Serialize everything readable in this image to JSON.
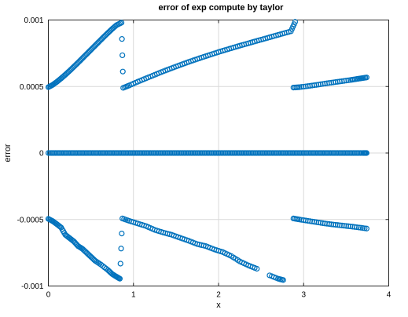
{
  "chart_data": {
    "type": "scatter",
    "title": "error of exp compute by taylor",
    "xlabel": "x",
    "ylabel": "error",
    "xlim": [
      0,
      4
    ],
    "ylim": [
      -0.001,
      0.001
    ],
    "xticks": [
      0,
      1,
      2,
      3,
      4
    ],
    "xtick_labels": [
      "0",
      "1",
      "2",
      "3",
      "4"
    ],
    "yticks": [
      -0.001,
      -0.0005,
      0,
      0.0005,
      0.001
    ],
    "ytick_labels": [
      "-0.001",
      "-0.0005",
      "0",
      "0.0005",
      "0.001"
    ],
    "grid": true,
    "marker": "circle-open",
    "color": "#0072bd",
    "series": [
      {
        "values": [
          {
            "x": 0.0,
            "y": 0.0
          },
          {
            "x": 0.1,
            "y": 0.0
          },
          {
            "x": 0.2,
            "y": 0.0
          },
          {
            "x": 0.3,
            "y": 0.0
          },
          {
            "x": 0.4,
            "y": 0.0
          },
          {
            "x": 0.5,
            "y": 0.0
          },
          {
            "x": 0.6,
            "y": 0.0
          },
          {
            "x": 0.7,
            "y": 0.0
          },
          {
            "x": 0.8,
            "y": 0.0
          },
          {
            "x": 0.9,
            "y": 0.0
          },
          {
            "x": 1.0,
            "y": 0.0
          },
          {
            "x": 1.1,
            "y": 0.0
          },
          {
            "x": 1.2,
            "y": 0.0
          },
          {
            "x": 1.3,
            "y": 0.0
          },
          {
            "x": 1.4,
            "y": 0.0
          },
          {
            "x": 1.5,
            "y": 0.0
          },
          {
            "x": 1.6,
            "y": 0.0
          },
          {
            "x": 1.7,
            "y": 0.0
          },
          {
            "x": 1.8,
            "y": 0.0
          },
          {
            "x": 1.9,
            "y": 0.0
          },
          {
            "x": 2.0,
            "y": 0.0
          },
          {
            "x": 2.1,
            "y": 0.0
          },
          {
            "x": 2.2,
            "y": 0.0
          },
          {
            "x": 2.3,
            "y": 0.0
          },
          {
            "x": 2.4,
            "y": 0.0
          },
          {
            "x": 2.5,
            "y": 0.0
          },
          {
            "x": 2.6,
            "y": 0.0
          },
          {
            "x": 2.7,
            "y": 0.0
          },
          {
            "x": 2.8,
            "y": 0.0
          },
          {
            "x": 2.9,
            "y": 0.0
          },
          {
            "x": 3.0,
            "y": 0.0
          },
          {
            "x": 3.1,
            "y": 0.0
          },
          {
            "x": 3.2,
            "y": 0.0
          },
          {
            "x": 3.3,
            "y": 0.0
          },
          {
            "x": 3.4,
            "y": 0.0
          },
          {
            "x": 3.5,
            "y": 0.0
          },
          {
            "x": 3.6,
            "y": 0.0
          },
          {
            "x": 3.7,
            "y": 0.0
          },
          {
            "x": 3.74,
            "y": 0.0
          },
          {
            "x": 0.0,
            "y": 0.000495
          },
          {
            "x": 0.05,
            "y": 0.000512
          },
          {
            "x": 0.1,
            "y": 0.000535
          },
          {
            "x": 0.15,
            "y": 0.000561
          },
          {
            "x": 0.2,
            "y": 0.000589
          },
          {
            "x": 0.25,
            "y": 0.000618
          },
          {
            "x": 0.3,
            "y": 0.000649
          },
          {
            "x": 0.35,
            "y": 0.00068
          },
          {
            "x": 0.4,
            "y": 0.000712
          },
          {
            "x": 0.45,
            "y": 0.000744
          },
          {
            "x": 0.5,
            "y": 0.000776
          },
          {
            "x": 0.55,
            "y": 0.000808
          },
          {
            "x": 0.6,
            "y": 0.00084
          },
          {
            "x": 0.65,
            "y": 0.000872
          },
          {
            "x": 0.7,
            "y": 0.000903
          },
          {
            "x": 0.75,
            "y": 0.000933
          },
          {
            "x": 0.8,
            "y": 0.000961
          },
          {
            "x": 0.86,
            "y": 0.00098
          },
          {
            "x": 0.88,
            "y": 0.00049
          },
          {
            "x": 0.95,
            "y": 0.000508
          },
          {
            "x": 1.05,
            "y": 0.000536
          },
          {
            "x": 1.15,
            "y": 0.000562
          },
          {
            "x": 1.25,
            "y": 0.000588
          },
          {
            "x": 1.35,
            "y": 0.000614
          },
          {
            "x": 1.45,
            "y": 0.000638
          },
          {
            "x": 1.55,
            "y": 0.000662
          },
          {
            "x": 1.65,
            "y": 0.000685
          },
          {
            "x": 1.75,
            "y": 0.000707
          },
          {
            "x": 1.85,
            "y": 0.000728
          },
          {
            "x": 1.95,
            "y": 0.000749
          },
          {
            "x": 2.05,
            "y": 0.000769
          },
          {
            "x": 2.15,
            "y": 0.000788
          },
          {
            "x": 2.25,
            "y": 0.000807
          },
          {
            "x": 2.35,
            "y": 0.000825
          },
          {
            "x": 2.45,
            "y": 0.000843
          },
          {
            "x": 2.55,
            "y": 0.000861
          },
          {
            "x": 2.65,
            "y": 0.000879
          },
          {
            "x": 2.75,
            "y": 0.000897
          },
          {
            "x": 2.85,
            "y": 0.000915
          },
          {
            "x": 2.9,
            "y": 0.000986
          },
          {
            "x": 2.88,
            "y": 0.000492
          },
          {
            "x": 2.95,
            "y": 0.000495
          },
          {
            "x": 3.05,
            "y": 0.000503
          },
          {
            "x": 3.15,
            "y": 0.000512
          },
          {
            "x": 3.25,
            "y": 0.000522
          },
          {
            "x": 3.35,
            "y": 0.000531
          },
          {
            "x": 3.45,
            "y": 0.00054
          },
          {
            "x": 3.55,
            "y": 0.000549
          },
          {
            "x": 3.62,
            "y": 0.000556
          },
          {
            "x": 3.68,
            "y": 0.000562
          },
          {
            "x": 3.74,
            "y": 0.000568
          },
          {
            "x": 0.0,
            "y": -0.000495
          },
          {
            "x": 0.05,
            "y": -0.000512
          },
          {
            "x": 0.1,
            "y": -0.000535
          },
          {
            "x": 0.15,
            "y": -0.00056
          },
          {
            "x": 0.2,
            "y": -0.000615
          },
          {
            "x": 0.25,
            "y": -0.00064
          },
          {
            "x": 0.3,
            "y": -0.000665
          },
          {
            "x": 0.35,
            "y": -0.0007
          },
          {
            "x": 0.4,
            "y": -0.00072
          },
          {
            "x": 0.45,
            "y": -0.00075
          },
          {
            "x": 0.5,
            "y": -0.00078
          },
          {
            "x": 0.55,
            "y": -0.00081
          },
          {
            "x": 0.62,
            "y": -0.00084
          },
          {
            "x": 0.7,
            "y": -0.00088
          },
          {
            "x": 0.75,
            "y": -0.00091
          },
          {
            "x": 0.8,
            "y": -0.00093
          },
          {
            "x": 0.84,
            "y": -0.000945
          },
          {
            "x": 0.87,
            "y": -0.000492
          },
          {
            "x": 0.95,
            "y": -0.00051
          },
          {
            "x": 1.05,
            "y": -0.00053
          },
          {
            "x": 1.15,
            "y": -0.00055
          },
          {
            "x": 1.25,
            "y": -0.000578
          },
          {
            "x": 1.35,
            "y": -0.000598
          },
          {
            "x": 1.45,
            "y": -0.000615
          },
          {
            "x": 1.55,
            "y": -0.000638
          },
          {
            "x": 1.65,
            "y": -0.00066
          },
          {
            "x": 1.75,
            "y": -0.000685
          },
          {
            "x": 1.85,
            "y": -0.0007
          },
          {
            "x": 1.95,
            "y": -0.000725
          },
          {
            "x": 2.05,
            "y": -0.000745
          },
          {
            "x": 2.15,
            "y": -0.000775
          },
          {
            "x": 2.25,
            "y": -0.000815
          },
          {
            "x": 2.35,
            "y": -0.000845
          },
          {
            "x": 2.45,
            "y": -0.00087
          },
          {
            "x": 2.6,
            "y": -0.00092
          },
          {
            "x": 2.7,
            "y": -0.000945
          },
          {
            "x": 2.76,
            "y": -0.000955
          },
          {
            "x": 2.88,
            "y": -0.000492
          },
          {
            "x": 2.95,
            "y": -0.0005
          },
          {
            "x": 3.05,
            "y": -0.00051
          },
          {
            "x": 3.15,
            "y": -0.00052
          },
          {
            "x": 3.25,
            "y": -0.00053
          },
          {
            "x": 3.35,
            "y": -0.000538
          },
          {
            "x": 3.45,
            "y": -0.000545
          },
          {
            "x": 3.55,
            "y": -0.000552
          },
          {
            "x": 3.65,
            "y": -0.00056
          },
          {
            "x": 3.74,
            "y": -0.000568
          }
        ]
      }
    ]
  }
}
